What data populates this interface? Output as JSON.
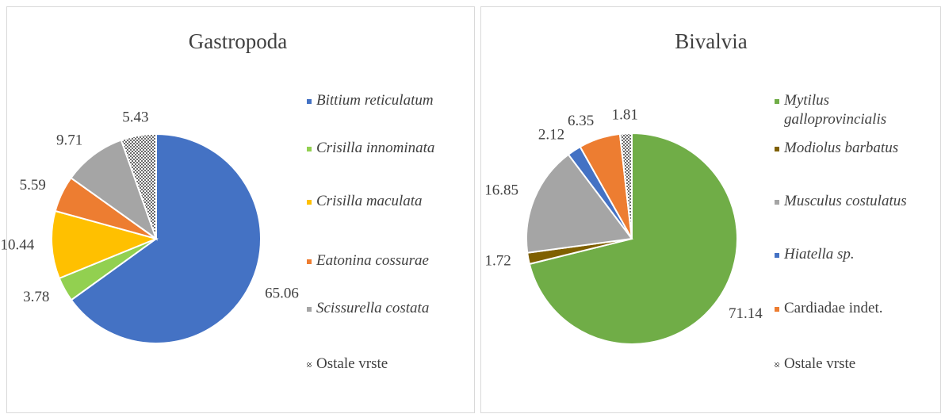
{
  "chart_data": [
    {
      "type": "pie",
      "title": "Gastropoda",
      "categories": [
        "Bittium reticulatum",
        "Crisilla innominata",
        "Crisilla maculata",
        "Eatonina cossurae",
        "Scissurella costata",
        "Ostale vrste"
      ],
      "values": [
        65.06,
        3.78,
        10.44,
        5.59,
        9.71,
        5.43
      ],
      "colors": [
        "#4472c4",
        "#92d050",
        "#ffc000",
        "#ed7d31",
        "#a5a5a5",
        "dotted"
      ],
      "italic": [
        true,
        true,
        true,
        true,
        true,
        false
      ],
      "legend": "right"
    },
    {
      "type": "pie",
      "title": "Bivalvia",
      "categories": [
        "Mytilus galloprovincialis",
        "Modiolus barbatus",
        "Musculus costulatus",
        "Hiatella sp.",
        "Cardiadae indet.",
        "Ostale vrste"
      ],
      "values": [
        71.14,
        1.72,
        16.85,
        2.12,
        6.35,
        1.81
      ],
      "colors": [
        "#70ad47",
        "#7f6000",
        "#a5a5a5",
        "#4472c4",
        "#ed7d31",
        "dotted"
      ],
      "italic": [
        true,
        true,
        true,
        true,
        false,
        false
      ],
      "legend": "right"
    }
  ]
}
